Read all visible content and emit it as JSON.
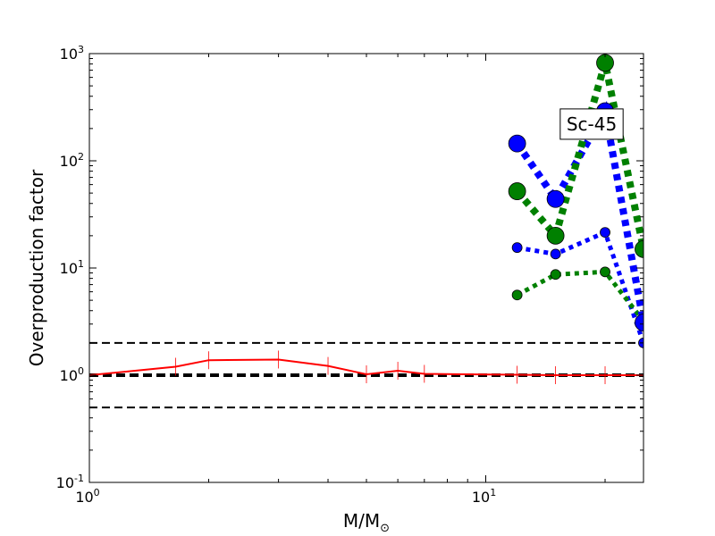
{
  "chart_data": {
    "type": "line",
    "xscale": "log",
    "yscale": "log",
    "xlim": [
      1,
      25
    ],
    "ylim": [
      0.1,
      1000
    ],
    "grid": false,
    "xlabel": {
      "main": "M/M",
      "sub": "⊙"
    },
    "ylabel": "Overproduction factor",
    "xticks": [
      {
        "value": 1,
        "base": "10",
        "exp": "0"
      },
      {
        "value": 10,
        "base": "10",
        "exp": "1"
      }
    ],
    "yticks": [
      {
        "value": 0.1,
        "base": "10",
        "exp": "-1"
      },
      {
        "value": 1,
        "base": "10",
        "exp": "0"
      },
      {
        "value": 10,
        "base": "10",
        "exp": "1"
      },
      {
        "value": 100,
        "base": "10",
        "exp": "2"
      },
      {
        "value": 1000,
        "base": "10",
        "exp": "3"
      }
    ],
    "reference_lines": [
      {
        "y": 2,
        "style": "dashed",
        "color": "#000000",
        "weight": "normal"
      },
      {
        "y": 1,
        "style": "dashed",
        "color": "#000000",
        "weight": "bold"
      },
      {
        "y": 0.5,
        "style": "dashed",
        "color": "#000000",
        "weight": "normal"
      }
    ],
    "annotation": {
      "text": "Sc-45",
      "x": 18.5,
      "y": 220
    },
    "series": [
      {
        "color": "#ff0000",
        "style": "solid",
        "marker": "tick",
        "x": [
          1,
          1.65,
          2,
          3,
          4,
          5,
          6,
          7,
          12,
          15,
          20,
          25
        ],
        "y": [
          1.0,
          1.2,
          1.38,
          1.4,
          1.22,
          1.02,
          1.1,
          1.03,
          1.01,
          1.0,
          1.0,
          1.0
        ]
      },
      {
        "color": "#0000ff",
        "style": "dotted",
        "marker": "circle",
        "size": "small",
        "x": [
          12,
          15,
          20,
          25
        ],
        "y": [
          15.5,
          13.5,
          21.5,
          2.0
        ]
      },
      {
        "color": "#008000",
        "style": "dotted",
        "marker": "circle",
        "size": "small",
        "x": [
          12,
          15,
          20,
          25
        ],
        "y": [
          5.6,
          8.7,
          9.2,
          3.2
        ]
      },
      {
        "color": "#0000ff",
        "style": "dotted",
        "marker": "circle",
        "size": "large",
        "x": [
          12,
          15,
          20,
          25
        ],
        "y": [
          145,
          44,
          290,
          3.1
        ]
      },
      {
        "color": "#008000",
        "style": "dotted",
        "marker": "circle",
        "size": "large",
        "x": [
          12,
          15,
          20,
          25
        ],
        "y": [
          52,
          20,
          820,
          15
        ]
      }
    ]
  }
}
